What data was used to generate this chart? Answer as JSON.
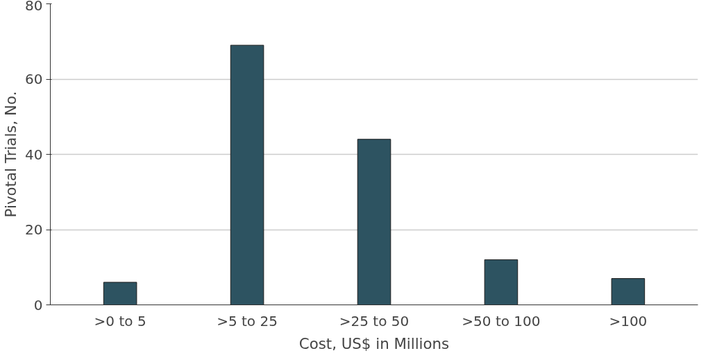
{
  "chart_data": {
    "type": "bar",
    "xlabel": "Cost, US$ in Millions",
    "ylabel": "Pivotal Trials, No.",
    "categories": [
      ">0 to 5",
      ">5 to 25",
      ">25 to 50",
      ">50 to 100",
      ">100"
    ],
    "values": [
      6,
      69,
      44,
      12,
      7
    ],
    "color": "#2d5361",
    "ylim": [
      0,
      80
    ],
    "yticks": [
      0,
      20,
      40,
      60,
      80
    ],
    "grid": "y"
  }
}
